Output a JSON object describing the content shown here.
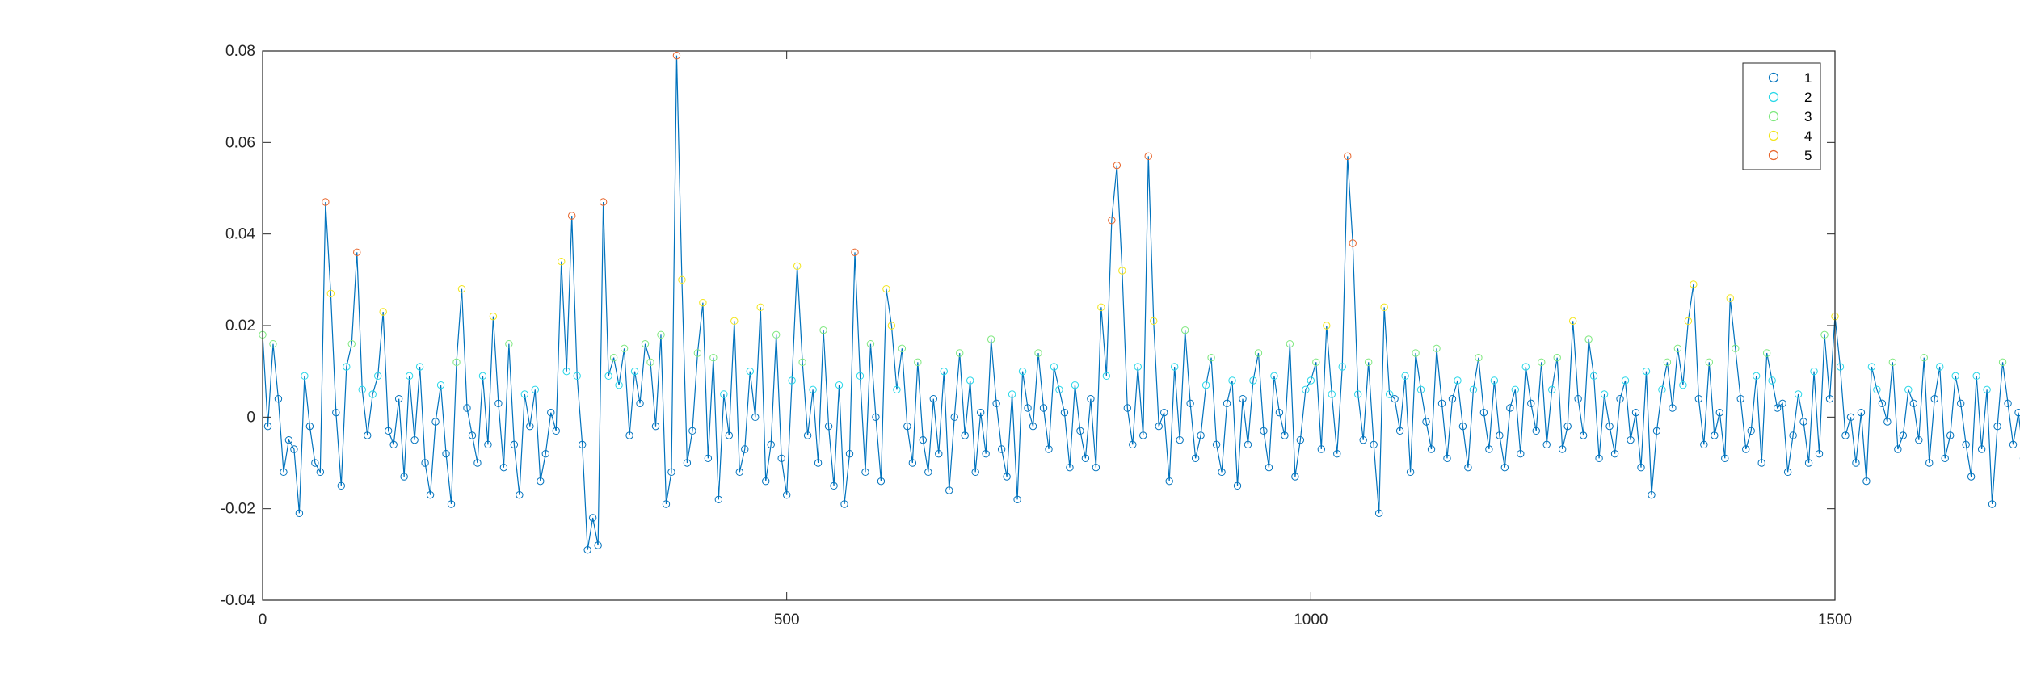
{
  "chart_data": {
    "type": "line",
    "title": "",
    "xlabel": "",
    "ylabel": "",
    "xlim": [
      0,
      1500
    ],
    "ylim": [
      -0.04,
      0.08
    ],
    "xticks": [
      0,
      500,
      1000,
      1500
    ],
    "xtick_labels": [
      "0",
      "500",
      "1000",
      "1500"
    ],
    "yticks": [
      -0.04,
      -0.02,
      0,
      0.02,
      0.04,
      0.06,
      0.08
    ],
    "ytick_labels": [
      "-0.04",
      "-0.02",
      "0",
      "0.02",
      "0.04",
      "0.06",
      "0.08"
    ],
    "grid": false,
    "legend_position": "top-right",
    "line_color": "#0072BD",
    "marker": "circle",
    "legend": [
      {
        "label": "1",
        "color": "#0072BD"
      },
      {
        "label": "2",
        "color": "#26D7E8"
      },
      {
        "label": "3",
        "color": "#7EE87E"
      },
      {
        "label": "4",
        "color": "#F2E51A"
      },
      {
        "label": "5",
        "color": "#E8642A"
      }
    ],
    "class_rule": "marker color class increases with the value's magnitude: class 1 below ~0.005, 2 up to ~0.012, 3 up to ~0.02, 4 up to ~0.035, 5 above",
    "x_step": 5,
    "values": [
      0.018,
      -0.002,
      0.016,
      0.004,
      -0.012,
      -0.005,
      -0.007,
      -0.021,
      0.009,
      -0.002,
      -0.01,
      -0.012,
      0.047,
      0.027,
      0.001,
      -0.015,
      0.011,
      0.016,
      0.036,
      0.006,
      -0.004,
      0.005,
      0.009,
      0.023,
      -0.003,
      -0.006,
      0.004,
      -0.013,
      0.009,
      -0.005,
      0.011,
      -0.01,
      -0.017,
      -0.001,
      0.007,
      -0.008,
      -0.019,
      0.012,
      0.028,
      0.002,
      -0.004,
      -0.01,
      0.009,
      -0.006,
      0.022,
      0.003,
      -0.011,
      0.016,
      -0.006,
      -0.017,
      0.005,
      -0.002,
      0.006,
      -0.014,
      -0.008,
      0.001,
      -0.003,
      0.034,
      0.01,
      0.044,
      0.009,
      -0.006,
      -0.029,
      -0.022,
      -0.028,
      0.047,
      0.009,
      0.013,
      0.007,
      0.015,
      -0.004,
      0.01,
      0.003,
      0.016,
      0.012,
      -0.002,
      0.018,
      -0.019,
      -0.012,
      0.079,
      0.03,
      -0.01,
      -0.003,
      0.014,
      0.025,
      -0.009,
      0.013,
      -0.018,
      0.005,
      -0.004,
      0.021,
      -0.012,
      -0.007,
      0.01,
      0.0,
      0.024,
      -0.014,
      -0.006,
      0.018,
      -0.009,
      -0.017,
      0.008,
      0.033,
      0.012,
      -0.004,
      0.006,
      -0.01,
      0.019,
      -0.002,
      -0.015,
      0.007,
      -0.019,
      -0.008,
      0.036,
      0.009,
      -0.012,
      0.016,
      0.0,
      -0.014,
      0.028,
      0.02,
      0.006,
      0.015,
      -0.002,
      -0.01,
      0.012,
      -0.005,
      -0.012,
      0.004,
      -0.008,
      0.01,
      -0.016,
      0.0,
      0.014,
      -0.004,
      0.008,
      -0.012,
      0.001,
      -0.008,
      0.017,
      0.003,
      -0.007,
      -0.013,
      0.005,
      -0.018,
      0.01,
      0.002,
      -0.002,
      0.014,
      0.002,
      -0.007,
      0.011,
      0.006,
      0.001,
      -0.011,
      0.007,
      -0.003,
      -0.009,
      0.004,
      -0.011,
      0.024,
      0.009,
      0.043,
      0.055,
      0.032,
      0.002,
      -0.006,
      0.011,
      -0.004,
      0.057,
      0.021,
      -0.002,
      0.001,
      -0.014,
      0.011,
      -0.005,
      0.019,
      0.003,
      -0.009,
      -0.004,
      0.007,
      0.013,
      -0.006,
      -0.012,
      0.003,
      0.008,
      -0.015,
      0.004,
      -0.006,
      0.008,
      0.014,
      -0.003,
      -0.011,
      0.009,
      0.001,
      -0.004,
      0.016,
      -0.013,
      -0.005,
      0.006,
      0.008,
      0.012,
      -0.007,
      0.02,
      0.005,
      -0.008,
      0.011,
      0.057,
      0.038,
      0.005,
      -0.005,
      0.012,
      -0.006,
      -0.021,
      0.024,
      0.005,
      0.004,
      -0.003,
      0.009,
      -0.012,
      0.014,
      0.006,
      -0.001,
      -0.007,
      0.015,
      0.003,
      -0.009,
      0.004,
      0.008,
      -0.002,
      -0.011,
      0.006,
      0.013,
      0.001,
      -0.007,
      0.008,
      -0.004,
      -0.011,
      0.002,
      0.006,
      -0.008,
      0.011,
      0.003,
      -0.003,
      0.012,
      -0.006,
      0.006,
      0.013,
      -0.007,
      -0.002,
      0.021,
      0.004,
      -0.004,
      0.017,
      0.009,
      -0.009,
      0.005,
      -0.002,
      -0.008,
      0.004,
      0.008,
      -0.005,
      0.001,
      -0.011,
      0.01,
      -0.017,
      -0.003,
      0.006,
      0.012,
      0.002,
      0.015,
      0.007,
      0.021,
      0.029,
      0.004,
      -0.006,
      0.012,
      -0.004,
      0.001,
      -0.009,
      0.026,
      0.015,
      0.004,
      -0.007,
      -0.003,
      0.009,
      -0.01,
      0.014,
      0.008,
      0.002,
      0.003,
      -0.012,
      -0.004,
      0.005,
      -0.001,
      -0.01,
      0.01,
      -0.008,
      0.018,
      0.004,
      0.022,
      0.011,
      -0.004,
      0.0,
      -0.01,
      0.001,
      -0.014,
      0.011,
      0.006,
      0.003,
      -0.001,
      0.012,
      -0.007,
      -0.004,
      0.006,
      0.003,
      -0.005,
      0.013,
      -0.01,
      0.004,
      0.011,
      -0.009,
      -0.004,
      0.009,
      0.003,
      -0.006,
      -0.013,
      0.009,
      -0.007,
      0.006,
      -0.019,
      -0.002,
      0.012,
      0.003,
      -0.006,
      0.001,
      -0.009,
      0.008,
      -0.004,
      0.006,
      0.014,
      0.011,
      -0.008,
      0.005,
      -0.004,
      0.024,
      -0.003,
      0.004,
      -0.008,
      -0.014,
      0.003,
      -0.002,
      0.005,
      0.011,
      0.006,
      -0.01,
      0.012,
      0.002,
      -0.006,
      -0.004,
      0.01,
      0.021,
      -0.002,
      -0.007,
      0.008,
      0.003,
      0.014,
      0.004,
      -0.006,
      0.009,
      0.0,
      -0.004,
      0.009,
      -0.008,
      0.006,
      -0.003,
      -0.006,
      0.005,
      0.003,
      -0.004,
      0.008,
      -0.006,
      -0.004,
      -0.001,
      0.01,
      0.002,
      -0.003,
      0.007,
      -0.004,
      -0.006,
      0.007,
      -0.002,
      -0.005,
      0.003,
      0.008,
      -0.004,
      -0.006,
      0.002,
      0.034,
      0.011,
      -0.004,
      -0.006,
      0.012,
      -0.002,
      -0.005,
      0.007,
      0.002,
      -0.004,
      0.051,
      0.043,
      0.036,
      0.041,
      0.009,
      -0.007,
      0.032,
      -0.008,
      -0.002,
      -0.016,
      0.005,
      -0.012,
      0.026,
      0.003,
      -0.008,
      0.007,
      0.012,
      -0.004,
      0.034,
      0.005,
      -0.006,
      0.021,
      0.006,
      -0.003,
      0.011,
      0.007,
      -0.004,
      0.02,
      0.005,
      -0.006,
      0.001,
      -0.002,
      0.013,
      -0.005,
      -0.008,
      0.008,
      0.003,
      -0.006,
      0.022,
      0.008,
      -0.004,
      0.016,
      0.002,
      -0.007,
      0.006,
      -0.003,
      -0.01,
      0.01,
      -0.005,
      0.032,
      -0.006,
      0.003,
      0.008,
      -0.006,
      0.002,
      -0.01,
      0.007,
      -0.004,
      0.012,
      -0.008,
      -0.003,
      0.005,
      0.009,
      -0.004,
      0.02,
      0.003,
      -0.008,
      0.011,
      0.004,
      -0.009,
      0.013,
      -0.003,
      -0.01,
      0.006,
      -0.002,
      -0.01,
      0.013,
      0.024,
      -0.005,
      0.008,
      -0.003,
      -0.01,
      0.01,
      0.004,
      -0.006,
      0.002,
      -0.002,
      0.011,
      -0.008,
      0.006,
      -0.004,
      0.01,
      0.003,
      -0.002,
      0.009,
      -0.003,
      -0.008,
      0.006,
      0.004,
      -0.005,
      0.002,
      -0.004,
      0.012,
      -0.01,
      -0.004,
      0.008,
      -0.006,
      -0.002,
      -0.009,
      -0.003,
      0.006,
      0.003,
      -0.013,
      -0.006,
      0.005,
      -0.002,
      -0.008,
      0.006,
      -0.007,
      -0.01,
      -0.006,
      -0.012
    ]
  }
}
